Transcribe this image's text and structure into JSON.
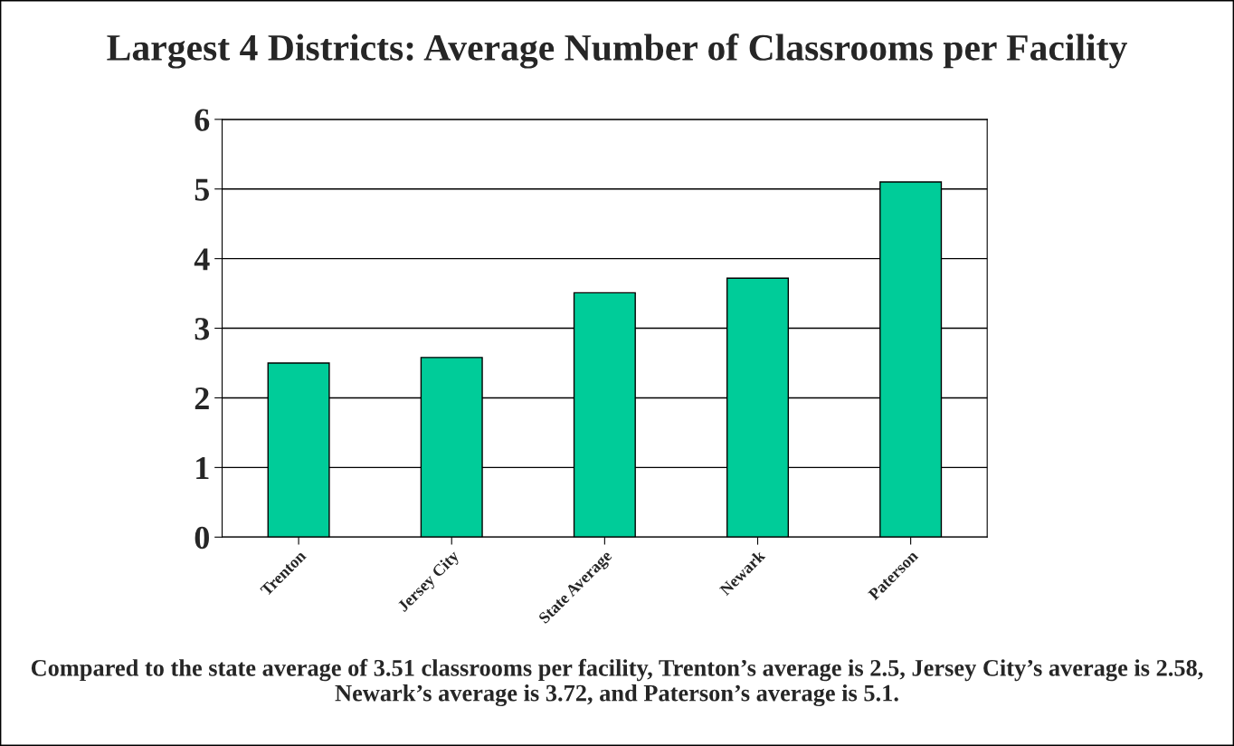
{
  "chart_data": {
    "type": "bar",
    "title": "Largest 4 Districts: Average Number of Classrooms per Facility",
    "categories": [
      "Trenton",
      "Jersey City",
      "State Average",
      "Newark",
      "Paterson"
    ],
    "values": [
      2.5,
      2.58,
      3.51,
      3.72,
      5.1
    ],
    "color": "#00cc99",
    "ylim": [
      0,
      6
    ],
    "yticks": [
      0,
      1,
      2,
      3,
      4,
      5,
      6
    ],
    "grid": "y",
    "annotations": [
      "Compared to the state average of 3.51 classrooms per facility, Trenton’s average is 2.5, Jersey City’s average is 2.58, Newark’s average is 3.72, and Paterson’s average is 5.1."
    ]
  }
}
